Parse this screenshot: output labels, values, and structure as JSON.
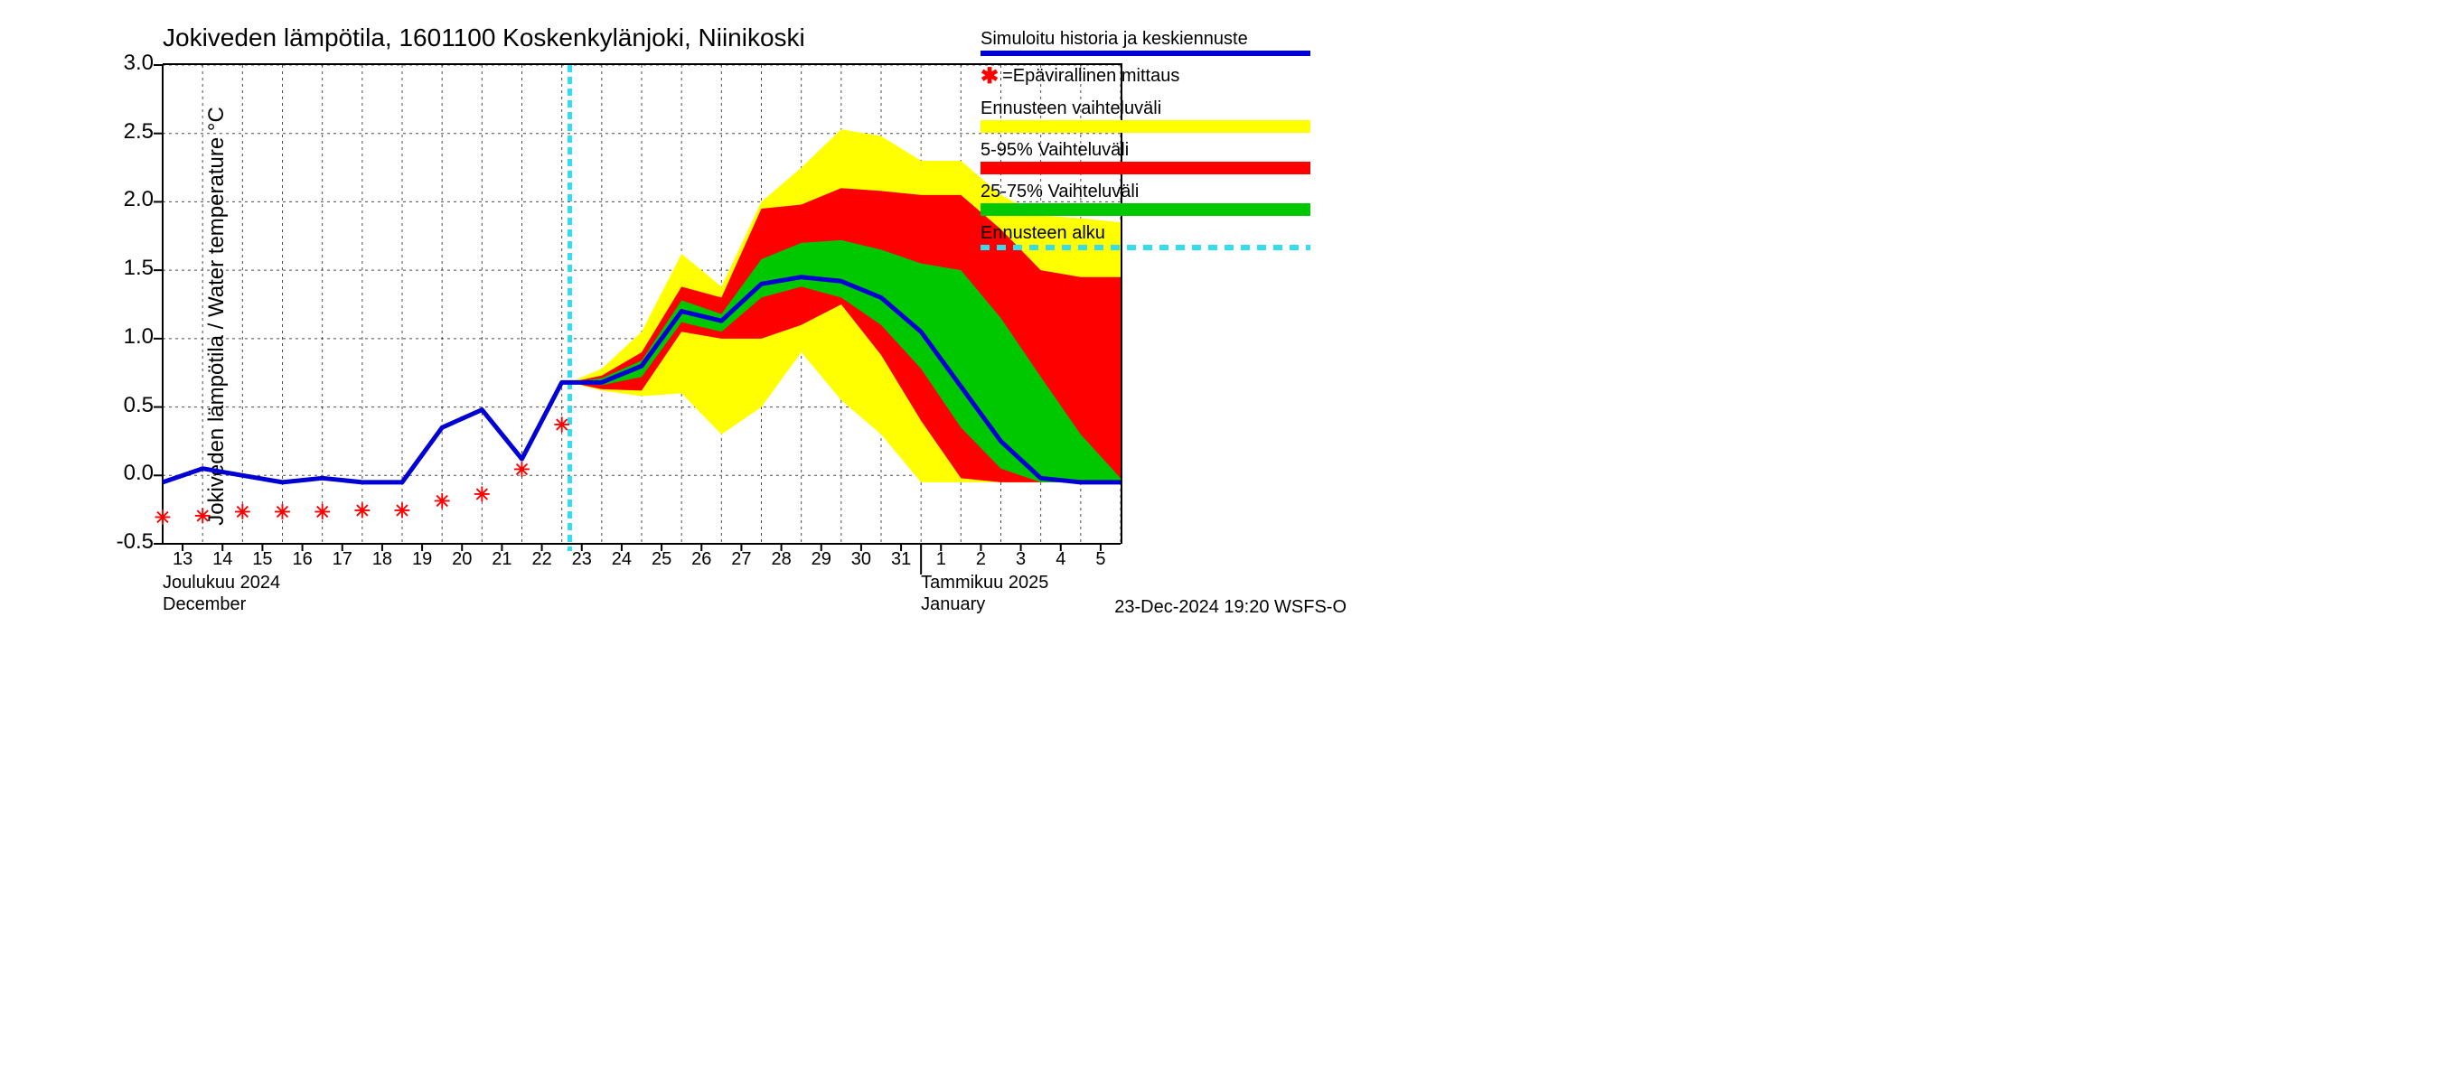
{
  "meta": {
    "timestamp": "23-Dec-2024 19:20 WSFS-O"
  },
  "chart": {
    "type": "line_with_uncertainty_bands",
    "title": "Jokiveden lämpötila, 1601100 Koskenkylänjoki, Niinikoski",
    "y_axis_label": "Jokiveden lämpötila / Water temperature   °C",
    "background_color": "#ffffff",
    "axis_color": "#000000",
    "grid_color": "#000000",
    "grid_dash": "3,4",
    "title_fontsize": 28,
    "label_fontsize": 24,
    "tick_fontsize": 20,
    "ylim": [
      -0.5,
      3.0
    ],
    "y_ticks": [
      -0.5,
      0.0,
      0.5,
      1.0,
      1.5,
      2.0,
      2.5,
      3.0
    ],
    "x_days": [
      13,
      14,
      15,
      16,
      17,
      18,
      19,
      20,
      21,
      22,
      23,
      24,
      25,
      26,
      27,
      28,
      29,
      30,
      31,
      1,
      2,
      3,
      4,
      5
    ],
    "x_month_left_fi": "Joulukuu  2024",
    "x_month_left_en": "December",
    "x_month_right_fi": "Tammikuu  2025",
    "x_month_right_en": "January",
    "forecast_start_idx": 10.2,
    "forecast_line_color": "#33ddee",
    "forecast_line_dash": "8,5",
    "forecast_line_width": 5,
    "simulated_line_color": "#0000d4",
    "simulated_line_width": 5,
    "measurement_marker_color": "#ff0000",
    "bands": {
      "outer_color": "#ffff00",
      "mid_color": "#ff0000",
      "inner_color": "#00c800"
    },
    "simulated": [
      -0.05,
      0.05,
      0.0,
      -0.05,
      -0.02,
      -0.05,
      -0.05,
      0.35,
      0.48,
      0.12,
      0.68,
      0.68,
      0.8,
      1.2,
      1.13,
      1.4,
      1.45,
      1.42,
      1.3,
      1.05,
      0.65,
      0.25,
      -0.02,
      -0.05,
      -0.05
    ],
    "measurements": {
      "x_idx": [
        0,
        1,
        2,
        3,
        4,
        5,
        6,
        7,
        8,
        9,
        10
      ],
      "y": [
        -0.32,
        -0.31,
        -0.28,
        -0.28,
        -0.28,
        -0.27,
        -0.27,
        -0.2,
        -0.15,
        0.03,
        0.36
      ]
    },
    "band_outer": {
      "x_idx": [
        10.2,
        11,
        12,
        13,
        14,
        15,
        16,
        17,
        18,
        19,
        20,
        21,
        22,
        23,
        24
      ],
      "hi": [
        0.68,
        0.78,
        1.05,
        1.62,
        1.38,
        2.0,
        2.25,
        2.53,
        2.48,
        2.3,
        2.3,
        2.05,
        1.9,
        1.88,
        1.85
      ],
      "lo": [
        0.68,
        0.62,
        0.58,
        0.6,
        0.3,
        0.5,
        0.9,
        0.55,
        0.3,
        -0.05,
        -0.05,
        -0.05,
        -0.05,
        -0.05,
        -0.05
      ]
    },
    "band_mid": {
      "x_idx": [
        10.2,
        11,
        12,
        13,
        14,
        15,
        16,
        17,
        18,
        19,
        20,
        21,
        22,
        23,
        24
      ],
      "hi": [
        0.68,
        0.73,
        0.9,
        1.38,
        1.3,
        1.95,
        1.98,
        2.1,
        2.08,
        2.05,
        2.05,
        1.8,
        1.5,
        1.45,
        1.45
      ],
      "lo": [
        0.68,
        0.63,
        0.62,
        1.05,
        1.0,
        1.0,
        1.1,
        1.25,
        0.88,
        0.4,
        -0.02,
        -0.05,
        -0.05,
        -0.05,
        -0.05
      ]
    },
    "band_inner": {
      "x_idx": [
        10.2,
        11,
        12,
        13,
        14,
        15,
        16,
        17,
        18,
        19,
        20,
        21,
        22,
        23,
        24
      ],
      "hi": [
        0.68,
        0.71,
        0.84,
        1.28,
        1.18,
        1.58,
        1.7,
        1.72,
        1.65,
        1.55,
        1.5,
        1.15,
        0.72,
        0.3,
        -0.02
      ],
      "lo": [
        0.68,
        0.66,
        0.72,
        1.12,
        1.05,
        1.3,
        1.38,
        1.3,
        1.1,
        0.78,
        0.35,
        0.05,
        -0.05,
        -0.05,
        -0.05
      ]
    }
  },
  "legend": {
    "items": [
      {
        "label": "Simuloitu historia ja keskiennuste",
        "type": "line",
        "color": "#0000d4"
      },
      {
        "label": "=Epävirallinen mittaus",
        "type": "marker",
        "marker": "✱",
        "color": "#ff0000"
      },
      {
        "label": "Ennusteen vaihteluväli",
        "type": "swatch",
        "color": "#ffff00"
      },
      {
        "label": "5-95% Vaihteluväli",
        "type": "swatch",
        "color": "#ff0000"
      },
      {
        "label": "25-75% Vaihteluväli",
        "type": "swatch",
        "color": "#00c800"
      },
      {
        "label": "Ennusteen alku",
        "type": "dashline",
        "color": "#33ddee"
      }
    ]
  }
}
